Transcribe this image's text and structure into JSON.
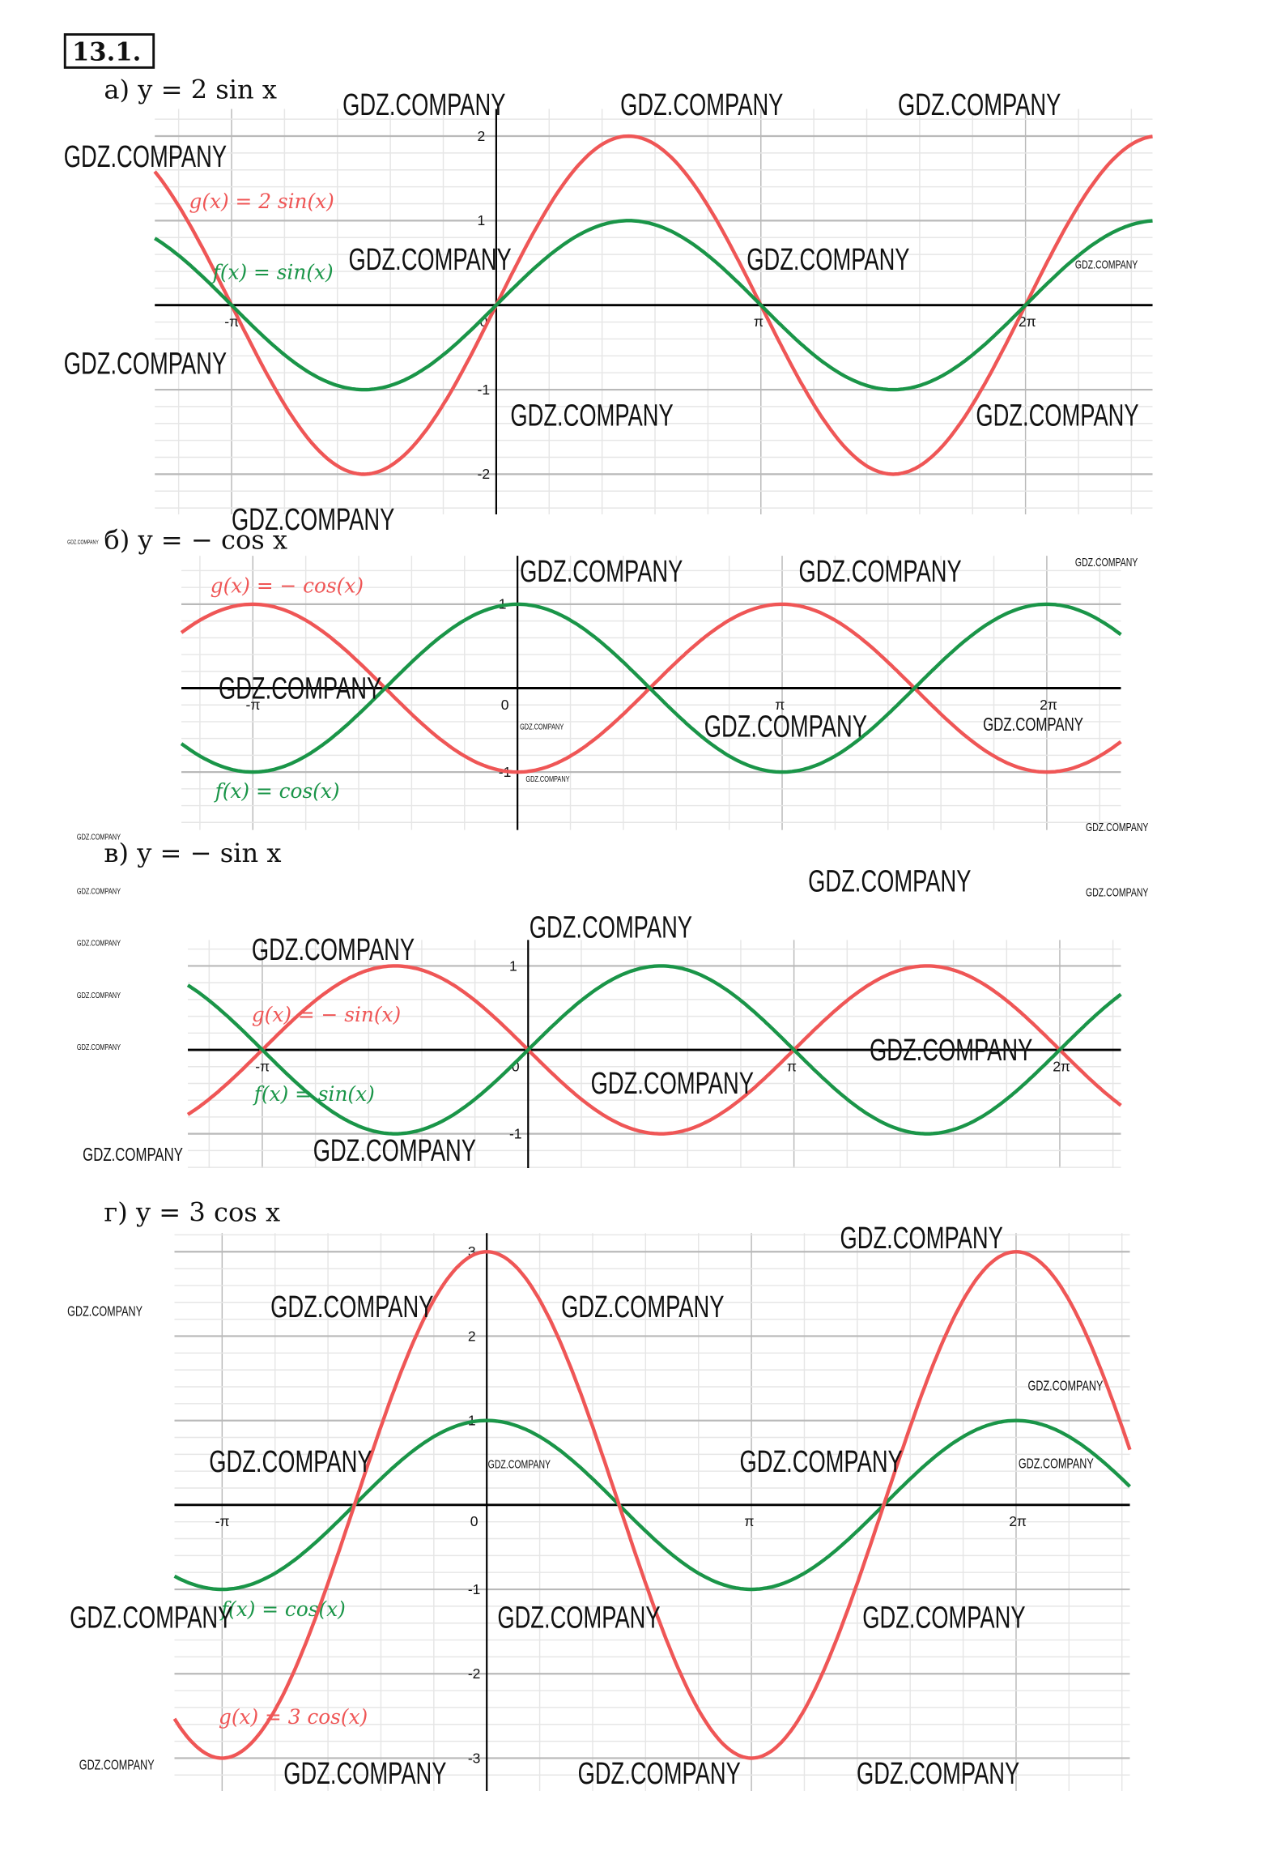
{
  "problem_number": "13.1.",
  "watermark": "GDZ.COMPANY",
  "colors": {
    "red": "#ef5656",
    "green": "#1a9548",
    "grid_minor": "#e6e6e6",
    "grid_major": "#b9b9b9",
    "axis": "#000000"
  },
  "chart_data": [
    {
      "type": "line",
      "title": "а)  y = 2 sin x",
      "x_ticks": [
        "-π",
        "0",
        "π",
        "2π"
      ],
      "x_tick_values_pi": [
        -1,
        0,
        1,
        2
      ],
      "y_ticks": [
        2,
        1,
        -1,
        -2
      ],
      "xlim_pi": [
        -1.29,
        2.48
      ],
      "ylim": [
        -2.5,
        2.35
      ],
      "grid": true,
      "series": [
        {
          "name": "g(x) = 2 sin(x)",
          "fn": "sin",
          "amp": 2,
          "color": "#ef5656"
        },
        {
          "name": "f(x) = sin(x)",
          "fn": "sin",
          "amp": 1,
          "color": "#1a9548"
        }
      ]
    },
    {
      "type": "line",
      "title": "б)  y = − cos x",
      "x_ticks": [
        "-π",
        "0",
        "π",
        "2π"
      ],
      "x_tick_values_pi": [
        -1,
        0,
        1,
        2
      ],
      "y_ticks": [
        1,
        -1
      ],
      "xlim_pi": [
        -1.27,
        2.28
      ],
      "ylim": [
        -1.7,
        1.6
      ],
      "grid": true,
      "series": [
        {
          "name": "g(x) = − cos(x)",
          "fn": "cos",
          "amp": -1,
          "color": "#ef5656"
        },
        {
          "name": "f(x) = cos(x)",
          "fn": "cos",
          "amp": 1,
          "color": "#1a9548"
        }
      ]
    },
    {
      "type": "line",
      "title": "в)  y = − sin x",
      "x_ticks": [
        "-π",
        "0",
        "π",
        "2π"
      ],
      "x_tick_values_pi": [
        -1,
        0,
        1,
        2
      ],
      "y_ticks": [
        1,
        -1
      ],
      "xlim_pi": [
        -1.28,
        2.23
      ],
      "ylim": [
        -1.4,
        1.3
      ],
      "grid": true,
      "series": [
        {
          "name": "g(x) = − sin(x)",
          "fn": "sin",
          "amp": -1,
          "color": "#ef5656"
        },
        {
          "name": "f(x) = sin(x)",
          "fn": "sin",
          "amp": 1,
          "color": "#1a9548"
        }
      ]
    },
    {
      "type": "line",
      "title": "г)  y = 3 cos x",
      "x_ticks": [
        "-π",
        "0",
        "π",
        "2π"
      ],
      "x_tick_values_pi": [
        -1,
        0,
        1,
        2
      ],
      "y_ticks": [
        3,
        2,
        1,
        -1,
        -2,
        -3
      ],
      "xlim_pi": [
        -1.18,
        2.43
      ],
      "ylim": [
        -3.4,
        3.2
      ],
      "grid": true,
      "series": [
        {
          "name": "f(x) = cos(x)",
          "fn": "cos",
          "amp": 1,
          "color": "#1a9548"
        },
        {
          "name": "g(x) = 3 cos(x)",
          "fn": "cos",
          "amp": 3,
          "color": "#ef5656"
        }
      ]
    }
  ]
}
